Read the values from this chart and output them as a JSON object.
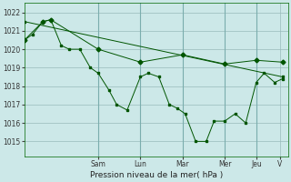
{
  "background_color": "#cce8e8",
  "grid_color": "#99bbbb",
  "line_color": "#005500",
  "xlabel": "Pression niveau de la mer( hPa )",
  "ylim": [
    1014.2,
    1022.5
  ],
  "yticks": [
    1015,
    1016,
    1017,
    1018,
    1019,
    1020,
    1021,
    1022
  ],
  "day_labels": [
    "Sam",
    "Lun",
    "Mar",
    "Mer",
    "Jeu",
    "V"
  ],
  "day_x": [
    0.28,
    0.44,
    0.6,
    0.76,
    0.88,
    0.97
  ],
  "xlim": [
    0,
    1.0
  ],
  "series1_x": [
    0.0,
    0.03,
    0.07,
    0.1,
    0.14,
    0.17,
    0.21,
    0.25,
    0.28,
    0.32,
    0.35,
    0.39,
    0.44,
    0.47,
    0.51,
    0.55,
    0.58,
    0.61,
    0.65,
    0.69,
    0.72,
    0.76,
    0.8,
    0.84,
    0.88,
    0.91,
    0.95,
    0.98
  ],
  "series1_y": [
    1020.5,
    1020.8,
    1021.5,
    1021.6,
    1020.2,
    1020.0,
    1020.0,
    1019.0,
    1018.7,
    1017.8,
    1017.0,
    1016.7,
    1018.5,
    1018.7,
    1018.5,
    1017.0,
    1016.8,
    1016.5,
    1015.0,
    1015.0,
    1016.1,
    1016.1,
    1016.5,
    1016.0,
    1018.2,
    1018.7,
    1018.2,
    1018.4
  ],
  "series2_x": [
    0.0,
    0.07,
    0.1,
    0.28,
    0.44,
    0.6,
    0.76,
    0.88,
    0.98
  ],
  "series2_y": [
    1020.5,
    1021.5,
    1021.6,
    1020.0,
    1019.3,
    1019.7,
    1019.2,
    1019.4,
    1019.3
  ],
  "series3_x": [
    0.0,
    0.98
  ],
  "series3_y": [
    1021.5,
    1018.5
  ]
}
